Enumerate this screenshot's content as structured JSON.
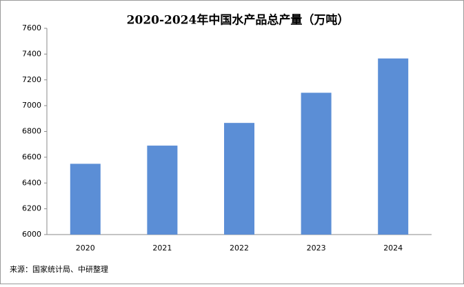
{
  "chart_data": {
    "type": "bar",
    "title": "2020-2024年中国水产品总产量（万吨）",
    "categories": [
      "2020",
      "2021",
      "2022",
      "2023",
      "2024"
    ],
    "values": [
      6549,
      6690,
      6866,
      7100,
      7366
    ],
    "color": "#5b8ed6",
    "ylim": [
      6000,
      7600
    ],
    "yticks": [
      6000,
      6200,
      6400,
      6600,
      6800,
      7000,
      7200,
      7400,
      7600
    ],
    "grid": false,
    "source": "来源：国家统计局、中研整理"
  }
}
